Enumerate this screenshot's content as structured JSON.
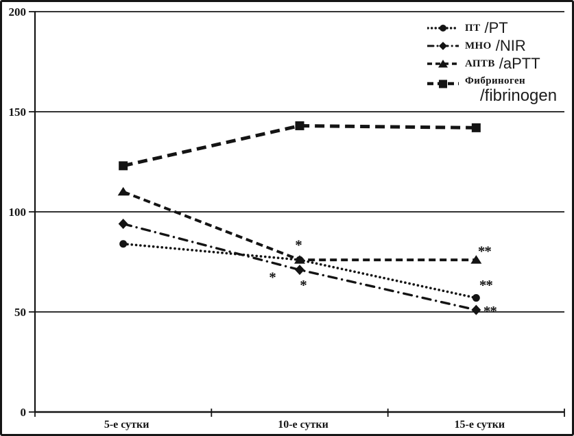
{
  "chart_data": {
    "type": "line",
    "title": "",
    "xlabel": "",
    "ylabel": "",
    "ylim": [
      0,
      200
    ],
    "y_ticks": [
      0,
      50,
      100,
      150,
      200
    ],
    "grid": "horizontal",
    "legend_position": "top-right",
    "color": "#141414",
    "categories": [
      "5-е сутки",
      "10-е сутки",
      "15-е сутки"
    ],
    "series": [
      {
        "ru": "ПТ",
        "en": "/PT",
        "name": "ПТ /PT",
        "values": [
          84,
          76,
          57
        ],
        "marker": "circle",
        "line": "dotted"
      },
      {
        "ru": "МНО",
        "en": "/NIR",
        "name": "МНО /NIR",
        "values": [
          94,
          71,
          51
        ],
        "marker": "diamond",
        "line": "dash-dot"
      },
      {
        "ru": "АПТВ",
        "en": "/aPTT",
        "name": "АПТВ /aPTT",
        "values": [
          110,
          76,
          76
        ],
        "marker": "triangle",
        "line": "dashed"
      },
      {
        "ru": "Фибриноген",
        "en": "/fibrinogen",
        "name": "Фибриноген /fibrinogen",
        "values": [
          123,
          143,
          142
        ],
        "marker": "square",
        "line": "long-dash"
      }
    ],
    "annotations": [
      {
        "text": "*",
        "cat": 1,
        "value": 84,
        "dx": -2
      },
      {
        "text": "*",
        "cat": 1,
        "value": 68,
        "dx": -40
      },
      {
        "text": "*",
        "cat": 1,
        "value": 64,
        "dx": 5
      },
      {
        "text": "**",
        "cat": 2,
        "value": 81,
        "dx": 12
      },
      {
        "text": "**",
        "cat": 2,
        "value": 64,
        "dx": 14
      },
      {
        "text": "**",
        "cat": 2,
        "value": 51,
        "dx": 20
      }
    ]
  }
}
